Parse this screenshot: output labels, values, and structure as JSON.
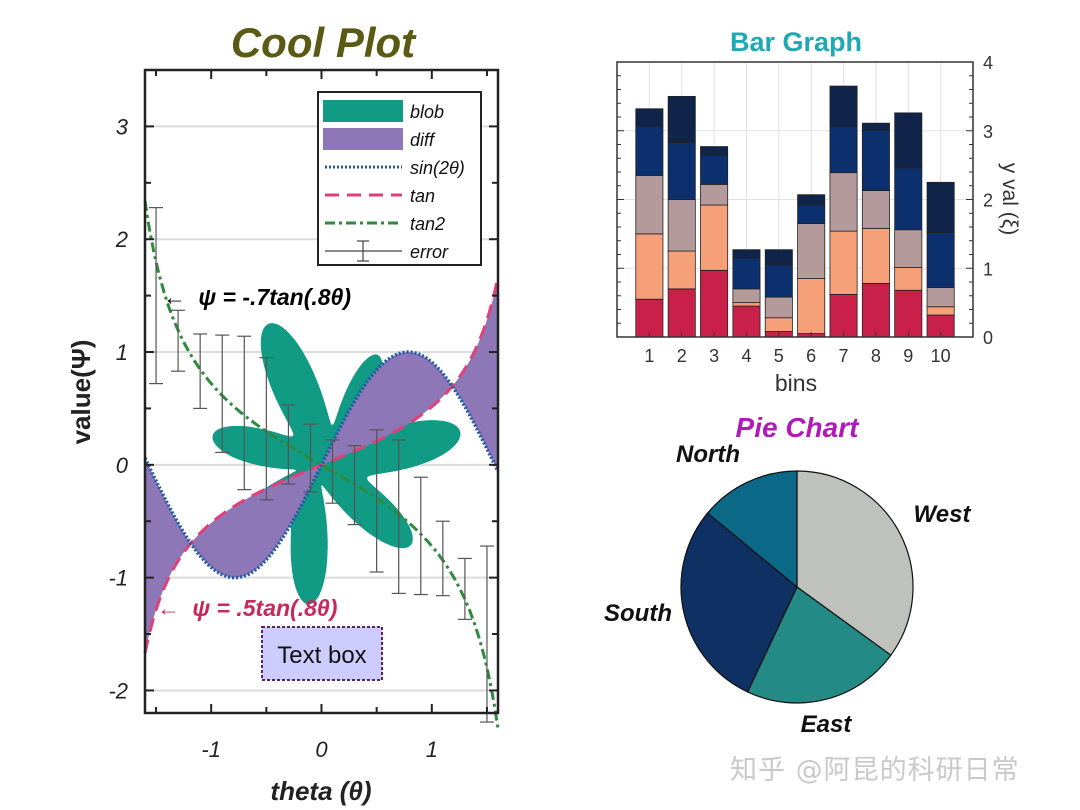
{
  "watermark": "知乎 @阿昆的科研日常",
  "chart_data": [
    {
      "type": "line",
      "title": "Cool Plot",
      "title_color": "#5a5a14",
      "xlabel": "theta (θ)",
      "ylabel": "value(Ψ)",
      "xlim": [
        -1.6,
        1.6
      ],
      "ylim": [
        -2.2,
        3.5
      ],
      "xticks": [
        -1,
        0,
        1
      ],
      "xtick_labels": [
        "-1",
        "0",
        "1"
      ],
      "yticks": [
        -2,
        -1,
        0,
        1,
        2,
        3
      ],
      "ytick_labels": [
        "-2",
        "-1",
        "0",
        "1",
        "2",
        "3"
      ],
      "grid": "horizontal",
      "legend_position": "top-right",
      "legend": [
        {
          "label": "blob",
          "kind": "patch",
          "color": "#119a84"
        },
        {
          "label": "diff",
          "kind": "patch",
          "color": "#8d77b6"
        },
        {
          "label": "sin(2θ)",
          "kind": "line",
          "color": "#1f5aa8",
          "dash": "dotted"
        },
        {
          "label": "tan",
          "kind": "line",
          "color": "#e0407a",
          "dash": "dashed"
        },
        {
          "label": "tan2",
          "kind": "line",
          "color": "#2e8a3e",
          "dash": "dashdot"
        },
        {
          "label": "error",
          "kind": "errorbar",
          "color": "#444444"
        }
      ],
      "series": [
        {
          "name": "sin(2θ)",
          "function": "sin(2θ)"
        },
        {
          "name": "tan",
          "function": ".5tan(.8θ)"
        },
        {
          "name": "tan2",
          "function": "-.7tan(.8θ)"
        }
      ],
      "error": {
        "x": [
          -1.5,
          -1.3,
          -1.1,
          -0.9,
          -0.7,
          -0.5,
          -0.3,
          -0.1,
          0.1,
          0.3,
          0.5,
          0.7,
          0.9,
          1.1,
          1.3,
          1.5
        ],
        "y": [
          1.5,
          1.1,
          0.83,
          0.63,
          0.46,
          0.32,
          0.18,
          0.06,
          -0.06,
          -0.18,
          -0.32,
          -0.46,
          -0.63,
          -0.83,
          -1.1,
          -1.5
        ],
        "err": [
          0.78,
          0.27,
          0.33,
          0.52,
          0.68,
          0.63,
          0.35,
          0.3,
          0.28,
          0.35,
          0.63,
          0.68,
          0.52,
          0.33,
          0.27,
          0.78
        ]
      },
      "annotations": [
        {
          "text": "ψ = -.7tan(.8θ)",
          "color": "#000000",
          "arrow": "←"
        },
        {
          "text": "ψ = .5tan(.8θ)",
          "color": "#c8295a",
          "arrow": "←"
        }
      ],
      "textbox": "Text box"
    },
    {
      "type": "bar",
      "stacked": true,
      "title": "Bar Graph",
      "title_color": "#20a8b4",
      "xlabel": "bins",
      "ylabel": "y val (ξ)",
      "yaxis_position": "right",
      "ylim": [
        0,
        4
      ],
      "yticks": [
        0,
        1,
        2,
        3,
        4
      ],
      "categories": [
        "1",
        "2",
        "3",
        "4",
        "5",
        "6",
        "7",
        "8",
        "9",
        "10"
      ],
      "grid": true,
      "series": [
        {
          "color": "#c9204a",
          "values": [
            0.55,
            0.7,
            0.97,
            0.45,
            0.08,
            0.05,
            0.62,
            0.78,
            0.68,
            0.32
          ]
        },
        {
          "color": "#f6a07a",
          "values": [
            0.95,
            0.55,
            0.95,
            0.05,
            0.2,
            0.8,
            0.92,
            0.8,
            0.33,
            0.12
          ]
        },
        {
          "color": "#b49a9a",
          "values": [
            0.85,
            0.75,
            0.3,
            0.2,
            0.3,
            0.8,
            0.85,
            0.55,
            0.55,
            0.28
          ]
        },
        {
          "color": "#0c2f6e",
          "values": [
            0.72,
            0.83,
            0.43,
            0.45,
            0.47,
            0.27,
            0.68,
            0.88,
            0.9,
            0.8
          ]
        },
        {
          "color": "#10244a",
          "values": [
            0.25,
            0.67,
            0.12,
            0.12,
            0.22,
            0.15,
            0.58,
            0.1,
            0.8,
            0.73
          ]
        }
      ]
    },
    {
      "type": "pie",
      "title": "Pie Chart",
      "title_color": "#b01ab8",
      "labels": [
        "West",
        "East",
        "South",
        "North"
      ],
      "values": [
        0.35,
        0.22,
        0.29,
        0.14
      ],
      "colors": [
        "#bfc1bd",
        "#238a85",
        "#0e3063",
        "#0c6887"
      ]
    }
  ]
}
